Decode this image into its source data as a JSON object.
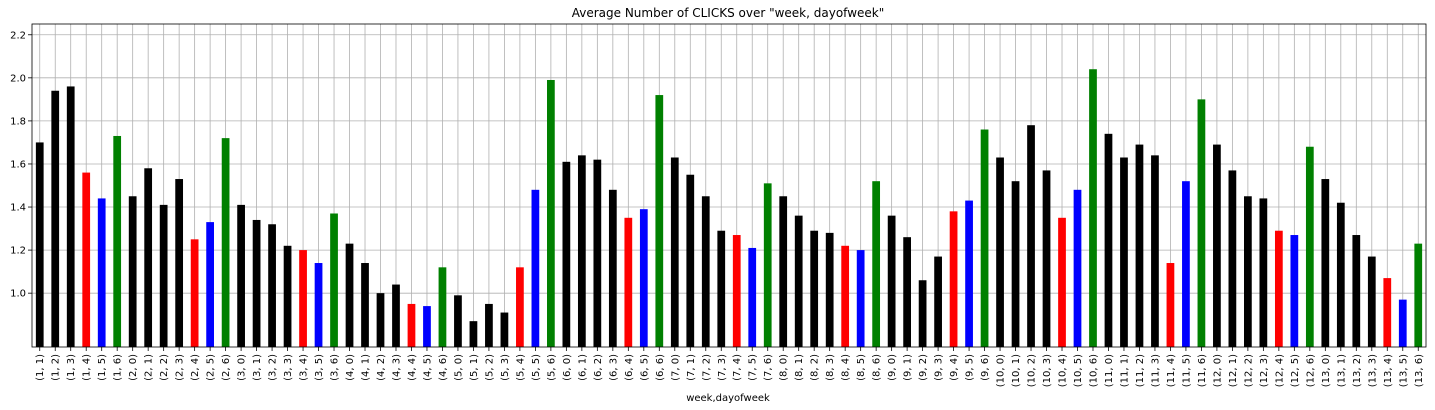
{
  "chart_data": {
    "type": "bar",
    "title": "Average Number of CLICKS over \"week, dayofweek\"",
    "xlabel": "week,dayofweek",
    "ylabel": "",
    "ylim": [
      0.75,
      2.25
    ],
    "yticks": [
      "1.0",
      "1.2",
      "1.4",
      "1.6",
      "1.8",
      "2.0",
      "2.2"
    ],
    "grid": true,
    "colors": {
      "black": "#000000",
      "red": "#ff0000",
      "blue": "#0000ff",
      "green": "#008000"
    },
    "categories": [
      "(1, 1)",
      "(1, 2)",
      "(1, 3)",
      "(1, 4)",
      "(1, 5)",
      "(1, 6)",
      "(2, 0)",
      "(2, 1)",
      "(2, 2)",
      "(2, 3)",
      "(2, 4)",
      "(2, 5)",
      "(2, 6)",
      "(3, 0)",
      "(3, 1)",
      "(3, 2)",
      "(3, 3)",
      "(3, 4)",
      "(3, 5)",
      "(3, 6)",
      "(4, 0)",
      "(4, 1)",
      "(4, 2)",
      "(4, 3)",
      "(4, 4)",
      "(4, 5)",
      "(4, 6)",
      "(5, 0)",
      "(5, 1)",
      "(5, 2)",
      "(5, 3)",
      "(5, 4)",
      "(5, 5)",
      "(5, 6)",
      "(6, 0)",
      "(6, 1)",
      "(6, 2)",
      "(6, 3)",
      "(6, 4)",
      "(6, 5)",
      "(6, 6)",
      "(7, 0)",
      "(7, 1)",
      "(7, 2)",
      "(7, 3)",
      "(7, 4)",
      "(7, 5)",
      "(7, 6)",
      "(8, 0)",
      "(8, 1)",
      "(8, 2)",
      "(8, 3)",
      "(8, 4)",
      "(8, 5)",
      "(8, 6)",
      "(9, 0)",
      "(9, 1)",
      "(9, 2)",
      "(9, 3)",
      "(9, 4)",
      "(9, 5)",
      "(9, 6)",
      "(10, 0)",
      "(10, 1)",
      "(10, 2)",
      "(10, 3)",
      "(10, 4)",
      "(10, 5)",
      "(10, 6)",
      "(11, 0)",
      "(11, 1)",
      "(11, 2)",
      "(11, 3)",
      "(11, 4)",
      "(11, 5)",
      "(11, 6)",
      "(12, 0)",
      "(12, 1)",
      "(12, 2)",
      "(12, 3)",
      "(12, 4)",
      "(12, 5)",
      "(12, 6)",
      "(13, 0)",
      "(13, 1)",
      "(13, 2)",
      "(13, 3)",
      "(13, 4)",
      "(13, 5)",
      "(13, 6)"
    ],
    "values": [
      1.7,
      1.94,
      1.96,
      1.56,
      1.44,
      1.73,
      1.45,
      1.58,
      1.41,
      1.53,
      1.25,
      1.33,
      1.72,
      1.41,
      1.34,
      1.32,
      1.22,
      1.2,
      1.14,
      1.37,
      1.23,
      1.14,
      1.0,
      1.04,
      0.95,
      0.94,
      1.12,
      0.99,
      0.87,
      0.95,
      0.91,
      1.12,
      1.48,
      1.99,
      1.61,
      1.64,
      1.62,
      1.48,
      1.35,
      1.39,
      1.92,
      1.63,
      1.55,
      1.45,
      1.29,
      1.27,
      1.21,
      1.51,
      1.45,
      1.36,
      1.29,
      1.28,
      1.22,
      1.2,
      1.52,
      1.36,
      1.26,
      1.06,
      1.17,
      1.38,
      1.43,
      1.76,
      1.63,
      1.52,
      1.78,
      1.57,
      1.35,
      1.48,
      2.04,
      1.74,
      1.63,
      1.69,
      1.64,
      1.14,
      1.52,
      1.9,
      1.69,
      1.57,
      1.45,
      1.44,
      1.29,
      1.27,
      1.68,
      1.53,
      1.42,
      1.27,
      1.17,
      1.07,
      0.97,
      1.23
    ],
    "bar_colors": [
      "black",
      "black",
      "black",
      "red",
      "blue",
      "green",
      "black",
      "black",
      "black",
      "black",
      "red",
      "blue",
      "green",
      "black",
      "black",
      "black",
      "black",
      "red",
      "blue",
      "green",
      "black",
      "black",
      "black",
      "black",
      "red",
      "blue",
      "green",
      "black",
      "black",
      "black",
      "black",
      "red",
      "blue",
      "green",
      "black",
      "black",
      "black",
      "black",
      "red",
      "blue",
      "green",
      "black",
      "black",
      "black",
      "black",
      "red",
      "blue",
      "green",
      "black",
      "black",
      "black",
      "black",
      "red",
      "blue",
      "green",
      "black",
      "black",
      "black",
      "black",
      "red",
      "blue",
      "green",
      "black",
      "black",
      "black",
      "black",
      "red",
      "blue",
      "green",
      "black",
      "black",
      "black",
      "black",
      "red",
      "blue",
      "green",
      "black",
      "black",
      "black",
      "black",
      "red",
      "blue",
      "green",
      "black",
      "black",
      "black",
      "black",
      "red",
      "blue",
      "green"
    ]
  }
}
